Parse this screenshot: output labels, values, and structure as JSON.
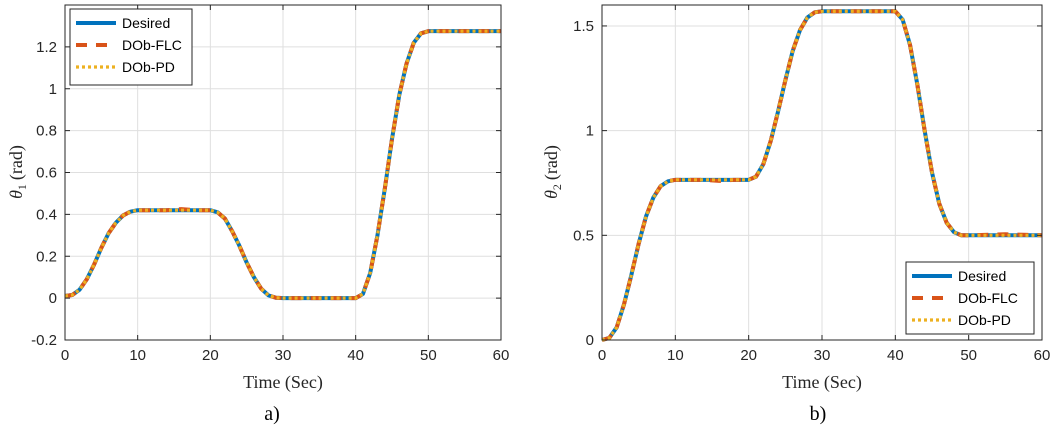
{
  "chart_data": [
    {
      "type": "line",
      "caption": "a)",
      "xlabel": "Time (Sec)",
      "ylabel_symbol": "θ",
      "ylabel_subscript": "1",
      "ylabel_unit": "(rad)",
      "xlim": [
        0,
        60
      ],
      "ylim": [
        -0.2,
        1.4
      ],
      "xticks": [
        0,
        10,
        20,
        30,
        40,
        50,
        60
      ],
      "xtick_labels": [
        "0",
        "10",
        "20",
        "30",
        "40",
        "50",
        "60"
      ],
      "yticks": [
        -0.2,
        0,
        0.2,
        0.4,
        0.6,
        0.8,
        1,
        1.2
      ],
      "ytick_labels": [
        "-0.2",
        "0",
        "0.2",
        "0.4",
        "0.6",
        "0.8",
        "1",
        "1.2"
      ],
      "grid": true,
      "legend_position": "top-left",
      "x": [
        0,
        1,
        2,
        3,
        4,
        5,
        6,
        7,
        8,
        9,
        10,
        12,
        14,
        16,
        18,
        20,
        21,
        22,
        23,
        24,
        25,
        26,
        27,
        28,
        29,
        30,
        35,
        40,
        41,
        42,
        43,
        44,
        45,
        46,
        47,
        48,
        49,
        50,
        55,
        60
      ],
      "series": [
        {
          "name": "Desired",
          "style": "solid",
          "color": "#0072BD",
          "values": [
            0.01,
            0.015,
            0.04,
            0.09,
            0.16,
            0.24,
            0.31,
            0.36,
            0.395,
            0.413,
            0.42,
            0.42,
            0.42,
            0.42,
            0.42,
            0.42,
            0.41,
            0.38,
            0.32,
            0.25,
            0.17,
            0.1,
            0.045,
            0.013,
            0.002,
            0.0,
            0.0,
            0.0,
            0.02,
            0.12,
            0.3,
            0.52,
            0.76,
            0.97,
            1.12,
            1.22,
            1.265,
            1.275,
            1.275,
            1.275
          ]
        },
        {
          "name": "DOb-FLC",
          "style": "dashed",
          "color": "#D95319",
          "values": [
            0.01,
            0.015,
            0.04,
            0.09,
            0.16,
            0.24,
            0.31,
            0.36,
            0.395,
            0.413,
            0.42,
            0.42,
            0.42,
            0.425,
            0.42,
            0.42,
            0.41,
            0.38,
            0.32,
            0.25,
            0.17,
            0.1,
            0.045,
            0.013,
            0.002,
            0.0,
            0.0,
            0.0,
            0.02,
            0.12,
            0.3,
            0.52,
            0.76,
            0.97,
            1.12,
            1.22,
            1.265,
            1.275,
            1.275,
            1.275
          ]
        },
        {
          "name": "DOb-PD",
          "style": "dotted",
          "color": "#EDB120",
          "values": [
            0.01,
            0.015,
            0.04,
            0.09,
            0.16,
            0.24,
            0.31,
            0.36,
            0.395,
            0.413,
            0.42,
            0.42,
            0.42,
            0.42,
            0.42,
            0.42,
            0.41,
            0.38,
            0.32,
            0.25,
            0.17,
            0.1,
            0.045,
            0.013,
            0.002,
            0.0,
            0.0,
            0.0,
            0.02,
            0.12,
            0.3,
            0.52,
            0.76,
            0.97,
            1.12,
            1.22,
            1.265,
            1.275,
            1.275,
            1.275
          ]
        }
      ]
    },
    {
      "type": "line",
      "caption": "b)",
      "xlabel": "Time (Sec)",
      "ylabel_symbol": "θ",
      "ylabel_subscript": "2",
      "ylabel_unit": "(rad)",
      "xlim": [
        0,
        60
      ],
      "ylim": [
        0,
        1.6
      ],
      "xticks": [
        0,
        10,
        20,
        30,
        40,
        50,
        60
      ],
      "xtick_labels": [
        "0",
        "10",
        "20",
        "30",
        "40",
        "50",
        "60"
      ],
      "yticks": [
        0,
        0.5,
        1,
        1.5
      ],
      "ytick_labels": [
        "0",
        "0.5",
        "1",
        "1.5"
      ],
      "grid": true,
      "legend_position": "bottom-right",
      "x": [
        0,
        1,
        2,
        3,
        4,
        5,
        6,
        7,
        8,
        9,
        10,
        12,
        14,
        16,
        18,
        20,
        21,
        22,
        23,
        24,
        25,
        26,
        27,
        28,
        29,
        30,
        35,
        40,
        41,
        42,
        43,
        44,
        45,
        46,
        47,
        48,
        49,
        50,
        55,
        60
      ],
      "series": [
        {
          "name": "Desired",
          "style": "solid",
          "color": "#0072BD",
          "values": [
            0.0,
            0.01,
            0.06,
            0.17,
            0.31,
            0.46,
            0.59,
            0.68,
            0.735,
            0.758,
            0.765,
            0.765,
            0.765,
            0.765,
            0.765,
            0.765,
            0.78,
            0.84,
            0.95,
            1.09,
            1.24,
            1.38,
            1.48,
            1.54,
            1.565,
            1.57,
            1.57,
            1.57,
            1.53,
            1.41,
            1.22,
            1.0,
            0.8,
            0.65,
            0.56,
            0.515,
            0.5,
            0.5,
            0.5,
            0.5
          ]
        },
        {
          "name": "DOb-FLC",
          "style": "dashed",
          "color": "#D95319",
          "values": [
            0.0,
            0.01,
            0.06,
            0.17,
            0.31,
            0.46,
            0.59,
            0.68,
            0.735,
            0.758,
            0.765,
            0.765,
            0.765,
            0.76,
            0.765,
            0.765,
            0.78,
            0.84,
            0.95,
            1.09,
            1.24,
            1.38,
            1.48,
            1.54,
            1.565,
            1.57,
            1.57,
            1.57,
            1.53,
            1.41,
            1.22,
            1.0,
            0.8,
            0.65,
            0.56,
            0.515,
            0.5,
            0.5,
            0.505,
            0.5
          ]
        },
        {
          "name": "DOb-PD",
          "style": "dotted",
          "color": "#EDB120",
          "values": [
            0.0,
            0.01,
            0.06,
            0.17,
            0.31,
            0.46,
            0.59,
            0.68,
            0.735,
            0.758,
            0.765,
            0.765,
            0.765,
            0.765,
            0.765,
            0.765,
            0.78,
            0.84,
            0.95,
            1.09,
            1.24,
            1.38,
            1.48,
            1.54,
            1.565,
            1.57,
            1.57,
            1.57,
            1.53,
            1.41,
            1.22,
            1.0,
            0.8,
            0.65,
            0.56,
            0.515,
            0.5,
            0.5,
            0.5,
            0.5
          ]
        }
      ]
    }
  ]
}
